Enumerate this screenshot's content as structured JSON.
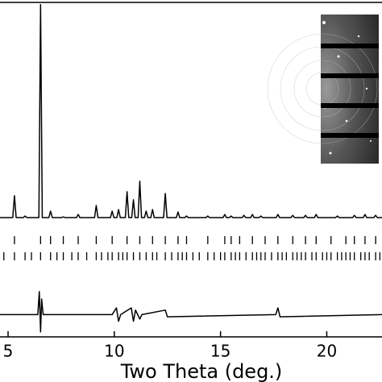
{
  "chart_data": {
    "type": "line",
    "x_label": "Two Theta (deg.)",
    "xlim": [
      4.62,
      22.6
    ],
    "ylim": [
      -50,
      100
    ],
    "xticks": [
      5,
      10,
      15,
      20
    ],
    "series": [
      {
        "color": "#000000",
        "x": [
          4.62,
          5.22,
          5.3,
          5.38,
          5.72,
          5.8,
          5.88,
          6.45,
          6.53,
          6.61,
          6.92,
          7.0,
          7.08,
          7.52,
          7.6,
          7.68,
          8.22,
          8.3,
          8.38,
          9.07,
          9.15,
          9.23,
          9.82,
          9.9,
          9.98,
          10.12,
          10.2,
          10.28,
          10.52,
          10.6,
          10.68,
          10.82,
          10.9,
          10.98,
          11.12,
          11.2,
          11.28,
          11.42,
          11.5,
          11.58,
          11.72,
          11.8,
          11.88,
          12.32,
          12.4,
          12.48,
          12.92,
          13.0,
          13.08,
          13.32,
          13.4,
          13.48,
          14.32,
          14.4,
          14.48,
          15.12,
          15.2,
          15.28,
          15.42,
          15.5,
          15.58,
          16.02,
          16.1,
          16.18,
          16.42,
          16.5,
          16.58,
          16.82,
          16.9,
          16.98,
          17.62,
          17.7,
          17.78,
          18.32,
          18.4,
          18.48,
          18.92,
          19.0,
          19.08,
          19.42,
          19.5,
          19.58,
          20.42,
          20.5,
          20.58,
          21.22,
          21.3,
          21.38,
          21.72,
          21.8,
          21.88,
          22.22,
          22.3,
          22.38,
          22.6
        ],
        "values": [
          3.5,
          3.5,
          13.3,
          3.5,
          3.5,
          4.2,
          3.5,
          3.5,
          99,
          3.5,
          3.5,
          6.4,
          3.5,
          3.5,
          3.8,
          3.5,
          3.5,
          4.9,
          3.5,
          3.5,
          8.9,
          3.5,
          3.5,
          6.4,
          3.5,
          3.5,
          7.1,
          3.5,
          3.5,
          15.1,
          3.5,
          3.5,
          11.5,
          3.5,
          3.5,
          19.8,
          3.5,
          3.5,
          6.4,
          3.5,
          3.5,
          7.1,
          3.5,
          3.5,
          14.3,
          3.5,
          3.5,
          6.0,
          3.5,
          3.5,
          4.2,
          3.5,
          3.5,
          4.2,
          3.5,
          3.5,
          4.9,
          3.5,
          3.5,
          4.2,
          3.5,
          3.5,
          4.5,
          3.5,
          3.5,
          4.9,
          3.5,
          3.5,
          4.2,
          3.5,
          3.5,
          4.9,
          3.5,
          3.5,
          4.5,
          3.5,
          3.5,
          4.5,
          3.5,
          3.5,
          4.9,
          3.5,
          3.5,
          4.2,
          3.5,
          3.5,
          4.5,
          3.5,
          3.5,
          4.9,
          3.5,
          3.5,
          4.5,
          3.5,
          3.5
        ]
      },
      {
        "color": "#000000",
        "x": [
          4.62,
          6.4,
          6.47,
          6.53,
          6.58,
          6.65,
          9.9,
          10.1,
          10.2,
          10.3,
          10.8,
          10.9,
          11.0,
          11.2,
          11.3,
          12.4,
          12.5,
          17.6,
          17.7,
          17.8,
          22.6
        ],
        "values": [
          -40,
          -40,
          -29.7,
          -47.8,
          -33,
          -40,
          -40,
          -37,
          -43,
          -40,
          -37,
          -43,
          -38,
          -42,
          -40,
          -38,
          -41,
          -40,
          -37,
          -41,
          -40
        ]
      }
    ],
    "reflections": [
      {
        "color": "#000000",
        "positions": [
          5.3,
          6.53,
          7.0,
          7.6,
          8.3,
          9.15,
          9.9,
          10.6,
          11.2,
          11.8,
          12.4,
          13.0,
          13.4,
          14.4,
          15.2,
          15.5,
          15.9,
          16.5,
          17.1,
          17.7,
          18.4,
          19.0,
          19.5,
          20.2,
          20.9,
          21.3,
          21.8,
          22.3
        ]
      },
      {
        "color": "#000000",
        "positions": [
          4.8,
          5.3,
          5.8,
          6.1,
          6.53,
          7.0,
          7.3,
          7.6,
          8.0,
          8.3,
          8.7,
          9.15,
          9.4,
          9.7,
          9.9,
          10.2,
          10.4,
          10.6,
          10.9,
          11.2,
          11.5,
          11.8,
          12.0,
          12.4,
          12.7,
          13.0,
          13.2,
          13.4,
          13.7,
          14.0,
          14.4,
          14.7,
          15.0,
          15.2,
          15.5,
          15.7,
          15.9,
          16.2,
          16.5,
          16.7,
          16.9,
          17.1,
          17.4,
          17.7,
          17.9,
          18.1,
          18.4,
          18.6,
          18.8,
          19.0,
          19.3,
          19.5,
          19.8,
          20.0,
          20.2,
          20.5,
          20.7,
          20.9,
          21.1,
          21.3,
          21.6,
          21.8,
          22.0,
          22.3,
          22.5
        ]
      }
    ]
  }
}
